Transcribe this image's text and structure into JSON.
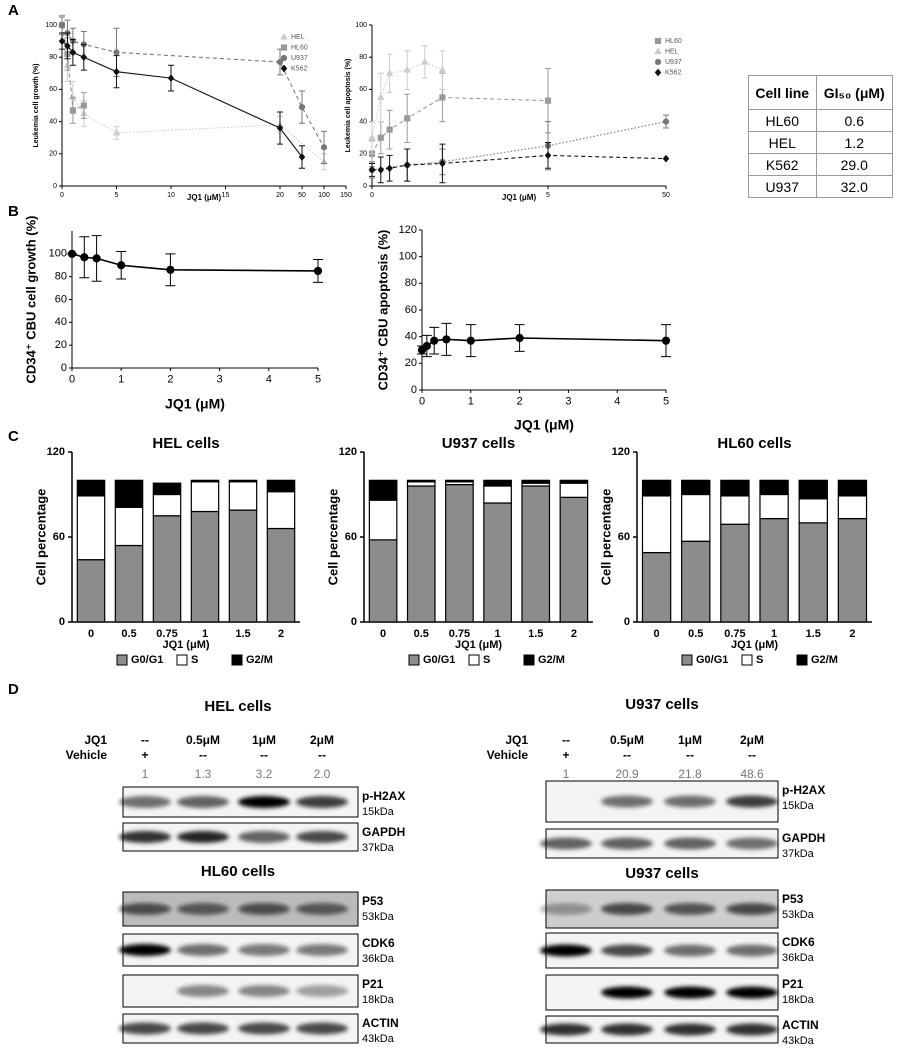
{
  "panel_labels": [
    "A",
    "B",
    "C",
    "D"
  ],
  "chart_data": [
    {
      "type": "line",
      "x_label": "JQ1 (μM)",
      "y_label": "Leukemia cell growth (%)",
      "xlim": [
        0,
        150
      ],
      "xticks": [
        0,
        5,
        10,
        15,
        20,
        50,
        100,
        150
      ],
      "ylim": [
        0,
        100
      ],
      "yticks": [
        0,
        20,
        40,
        60,
        80,
        100
      ],
      "legend": "upper right",
      "series": [
        {
          "name": "HEL",
          "color": "#cccccc",
          "marker": "triangle",
          "linestyle": "dotted",
          "x": [
            0,
            0.5,
            1,
            2,
            5,
            20,
            100
          ],
          "values": [
            100,
            75,
            55,
            45,
            33,
            38,
            15
          ],
          "errors": [
            5,
            10,
            10,
            8,
            4,
            5,
            5
          ]
        },
        {
          "name": "HL60",
          "color": "#999999",
          "marker": "square",
          "linestyle": "dashed",
          "x": [
            0,
            0.5,
            1,
            2
          ],
          "values": [
            100,
            82,
            47,
            50
          ],
          "errors": [
            6,
            10,
            8,
            8
          ]
        },
        {
          "name": "U937",
          "color": "#777777",
          "marker": "circle",
          "linestyle": "dashed",
          "x": [
            0,
            0.5,
            1,
            2,
            5,
            20,
            50,
            100
          ],
          "values": [
            100,
            95,
            90,
            88,
            83,
            77,
            49,
            24
          ],
          "errors": [
            5,
            8,
            8,
            8,
            15,
            8,
            10,
            10
          ]
        },
        {
          "name": "K562",
          "color": "#111111",
          "marker": "diamond",
          "linestyle": "solid",
          "x": [
            0,
            0.5,
            1,
            2,
            5,
            10,
            20,
            50
          ],
          "values": [
            90,
            87,
            83,
            80,
            71,
            67,
            36,
            18
          ],
          "errors": [
            5,
            8,
            8,
            8,
            10,
            8,
            10,
            7
          ]
        }
      ]
    },
    {
      "type": "line",
      "x_label": "JQ1 (μM)",
      "y_label": "Leukemia cell apoptosis (%)",
      "xlim": [
        0,
        50
      ],
      "xticks": [
        0,
        5,
        50
      ],
      "ylim": [
        0,
        100
      ],
      "yticks": [
        0,
        20,
        40,
        60,
        80,
        100
      ],
      "legend": "upper right",
      "series": [
        {
          "name": "HL60",
          "color": "#999999",
          "marker": "square",
          "linestyle": "dashed",
          "x": [
            0,
            0.25,
            0.5,
            1,
            2,
            5
          ],
          "values": [
            20,
            30,
            35,
            42,
            55,
            53
          ],
          "errors": [
            8,
            10,
            12,
            15,
            15,
            20
          ]
        },
        {
          "name": "HEL",
          "color": "#cccccc",
          "marker": "triangle",
          "linestyle": "dotted",
          "x": [
            0,
            0.25,
            0.5,
            1,
            1.5,
            2
          ],
          "values": [
            30,
            55,
            70,
            72,
            77,
            72
          ],
          "errors": [
            10,
            15,
            12,
            12,
            10,
            12
          ]
        },
        {
          "name": "U937",
          "color": "#777777",
          "marker": "circle",
          "linestyle": "dotted",
          "x": [
            0,
            1,
            2,
            5,
            50
          ],
          "values": [
            10,
            13,
            15,
            25,
            40
          ],
          "errors": [
            5,
            10,
            8,
            15,
            4
          ]
        },
        {
          "name": "K562",
          "color": "#111111",
          "marker": "diamond",
          "linestyle": "dashed",
          "x": [
            0,
            0.25,
            0.5,
            1,
            2,
            5,
            50
          ],
          "values": [
            10,
            10,
            11,
            13,
            14,
            19,
            17
          ],
          "errors": [
            4,
            8,
            8,
            10,
            12,
            8,
            0
          ]
        }
      ]
    },
    {
      "type": "line",
      "x_label": "JQ1 (μM)",
      "y_label": "CD34⁺ CBU cell growth (%)",
      "xlim": [
        0,
        5
      ],
      "xticks": [
        0,
        1,
        2,
        3,
        4,
        5
      ],
      "ylim": [
        0,
        120
      ],
      "yticks": [
        0,
        20,
        40,
        60,
        80,
        100
      ],
      "series": [
        {
          "color": "#000000",
          "marker": "circle",
          "linestyle": "solid",
          "x": [
            0,
            0.25,
            0.5,
            1,
            2,
            5
          ],
          "values": [
            100,
            97,
            96,
            90,
            86,
            85
          ],
          "errors": [
            0,
            18,
            20,
            12,
            14,
            10
          ]
        }
      ]
    },
    {
      "type": "line",
      "x_label": "JQ1 (μM)",
      "y_label": "CD34⁺ CBU apoptosis (%)",
      "xlim": [
        0,
        5
      ],
      "xticks": [
        0,
        1,
        2,
        3,
        4,
        5
      ],
      "ylim": [
        0,
        120
      ],
      "yticks": [
        0,
        20,
        40,
        60,
        80,
        100,
        120
      ],
      "series": [
        {
          "color": "#000000",
          "marker": "circle",
          "linestyle": "solid",
          "x": [
            0,
            0.1,
            0.25,
            0.5,
            1,
            2,
            5
          ],
          "values": [
            30,
            33,
            37,
            38,
            37,
            39,
            37
          ],
          "errors": [
            3,
            8,
            10,
            12,
            12,
            10,
            12
          ]
        }
      ]
    },
    {
      "type": "stacked_bar",
      "title": "HEL cells",
      "x_label": "JQ1 (μM)",
      "y_label": "Cell percentage",
      "categories": [
        "0",
        "0.5",
        "0.75",
        "1",
        "1.5",
        "2"
      ],
      "ylim": [
        0,
        120
      ],
      "yticks": [
        0,
        60,
        120
      ],
      "series": [
        {
          "name": "G0/G1",
          "color": "#8c8c8c",
          "values": [
            44,
            54,
            75,
            78,
            79,
            66
          ]
        },
        {
          "name": "S",
          "color": "#ffffff",
          "values": [
            45,
            27,
            15,
            21,
            20,
            26
          ]
        },
        {
          "name": "G2/M",
          "color": "#000000",
          "values": [
            11,
            19,
            8,
            1,
            1,
            8
          ]
        }
      ]
    },
    {
      "type": "stacked_bar",
      "title": "U937 cells",
      "x_label": "JQ1 (μM)",
      "y_label": "Cell percentage",
      "categories": [
        "0",
        "0.5",
        "0.75",
        "1",
        "1.5",
        "2"
      ],
      "ylim": [
        0,
        120
      ],
      "yticks": [
        0,
        60,
        120
      ],
      "series": [
        {
          "name": "G0/G1",
          "color": "#8c8c8c",
          "values": [
            58,
            96,
            97,
            84,
            96,
            88
          ]
        },
        {
          "name": "S",
          "color": "#ffffff",
          "values": [
            28,
            3,
            2,
            12,
            2,
            10
          ]
        },
        {
          "name": "G2/M",
          "color": "#000000",
          "values": [
            14,
            1,
            1,
            4,
            2,
            2
          ]
        }
      ]
    },
    {
      "type": "stacked_bar",
      "title": "HL60 cells",
      "x_label": "JQ1 (μM)",
      "y_label": "Cell percentage",
      "categories": [
        "0",
        "0.5",
        "0.75",
        "1",
        "1.5",
        "2"
      ],
      "ylim": [
        0,
        120
      ],
      "yticks": [
        0,
        60,
        120
      ],
      "series": [
        {
          "name": "G0/G1",
          "color": "#8c8c8c",
          "values": [
            49,
            57,
            69,
            73,
            70,
            73
          ]
        },
        {
          "name": "S",
          "color": "#ffffff",
          "values": [
            40,
            33,
            20,
            17,
            17,
            16
          ]
        },
        {
          "name": "G2/M",
          "color": "#000000",
          "values": [
            11,
            10,
            11,
            10,
            13,
            11
          ]
        }
      ]
    }
  ],
  "table": {
    "header": [
      "Cell line",
      "GI₅₀ (μM)"
    ],
    "rows": [
      [
        "HL60",
        "0.6"
      ],
      [
        "HEL",
        "1.2"
      ],
      [
        "K562",
        "29.0"
      ],
      [
        "U937",
        "32.0"
      ]
    ]
  },
  "blots": [
    {
      "title": "HEL cells",
      "row_labels": [
        "JQ1",
        "Vehicle"
      ],
      "jq1": [
        "--",
        "0.5μM",
        "1μM",
        "2μM"
      ],
      "vehicle": [
        "+",
        "--",
        "--",
        "--"
      ],
      "quantification": [
        "1",
        "1.3",
        "3.2",
        "2.0"
      ],
      "groups": [
        {
          "proteins": [
            {
              "name": "p-H2AX",
              "size": "15kDa"
            },
            {
              "name": "GAPDH",
              "size": "37kDa"
            }
          ]
        },
        {
          "title": "HL60 cells",
          "proteins": [
            {
              "name": "P53",
              "size": "53kDa"
            },
            {
              "name": "CDK6",
              "size": "36kDa"
            },
            {
              "name": "P21",
              "size": "18kDa"
            },
            {
              "name": "ACTIN",
              "size": "43kDa"
            }
          ]
        }
      ]
    },
    {
      "title": "U937 cells",
      "row_labels": [
        "JQ1",
        "Vehicle"
      ],
      "jq1": [
        "--",
        "0.5μM",
        "1μM",
        "2μM"
      ],
      "vehicle": [
        "+",
        "--",
        "--",
        "--"
      ],
      "quantification": [
        "1",
        "20.9",
        "21.8",
        "48.6"
      ],
      "groups": [
        {
          "proteins": [
            {
              "name": "p-H2AX",
              "size": "15kDa"
            },
            {
              "name": "GAPDH",
              "size": "37kDa"
            }
          ]
        },
        {
          "title": "U937 cells",
          "proteins": [
            {
              "name": "P53",
              "size": "53kDa"
            },
            {
              "name": "CDK6",
              "size": "36kDa"
            },
            {
              "name": "P21",
              "size": "18kDa"
            },
            {
              "name": "ACTIN",
              "size": "43kDa"
            }
          ]
        }
      ]
    }
  ]
}
